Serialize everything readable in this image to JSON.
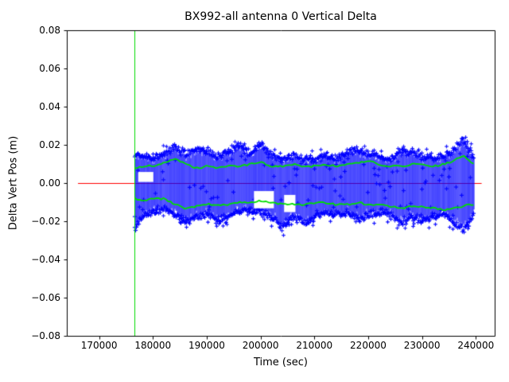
{
  "chart_data": {
    "type": "scatter",
    "title": "BX992-all antenna 0 Vertical Delta",
    "xlabel": "Time (sec)",
    "ylabel": "Delta Vert Pos (m)",
    "xlim": [
      164000,
      243500
    ],
    "ylim": [
      -0.08,
      0.08
    ],
    "xticks": [
      170000,
      180000,
      190000,
      200000,
      210000,
      220000,
      230000,
      240000
    ],
    "yticks": [
      -0.08,
      -0.06,
      -0.04,
      -0.02,
      0.0,
      0.02,
      0.04,
      0.06,
      0.08
    ],
    "grid": false,
    "legend": null,
    "marker": "+",
    "colors": {
      "scatter": "#0000ff",
      "smooth": "#00dd00",
      "zero_line": "#ff0000",
      "start_marker": "#00dd00",
      "axes": "#000000"
    },
    "data_x_start": 176500,
    "data_x_end": 239500,
    "vline_x": 176500,
    "zero_line": {
      "y": 0.0,
      "x0": 166000,
      "x1": 241000
    },
    "env_x": [
      176500,
      178000,
      180000,
      182000,
      184000,
      186000,
      188000,
      190000,
      192000,
      194000,
      196000,
      198000,
      200000,
      202000,
      204000,
      206000,
      208000,
      210000,
      212000,
      214000,
      216000,
      218000,
      220000,
      222000,
      224000,
      226000,
      228000,
      230000,
      232000,
      234000,
      236000,
      237500,
      239000,
      239500
    ],
    "series": [
      {
        "name": "vertical delta raw (blue +)",
        "type": "noise-band",
        "color": "#0000ff",
        "upper": [
          0.016,
          0.015,
          0.014,
          0.016,
          0.02,
          0.016,
          0.019,
          0.018,
          0.015,
          0.018,
          0.021,
          0.016,
          0.022,
          0.015,
          0.014,
          0.015,
          0.014,
          0.013,
          0.015,
          0.014,
          0.017,
          0.019,
          0.016,
          0.015,
          0.014,
          0.018,
          0.017,
          0.015,
          0.014,
          0.015,
          0.018,
          0.025,
          0.018,
          0.014
        ],
        "lower": [
          -0.026,
          -0.018,
          -0.015,
          -0.014,
          -0.017,
          -0.022,
          -0.018,
          -0.017,
          -0.02,
          -0.018,
          -0.016,
          -0.015,
          -0.016,
          -0.018,
          -0.024,
          -0.018,
          -0.022,
          -0.018,
          -0.016,
          -0.017,
          -0.016,
          -0.02,
          -0.017,
          -0.016,
          -0.017,
          -0.022,
          -0.018,
          -0.02,
          -0.018,
          -0.016,
          -0.022,
          -0.025,
          -0.02,
          -0.016
        ]
      },
      {
        "name": "smoothed upper envelope (green)",
        "type": "line",
        "color": "#00dd00",
        "y": [
          0.008,
          0.009,
          0.009,
          0.011,
          0.013,
          0.01,
          0.008,
          0.009,
          0.008,
          0.009,
          0.009,
          0.01,
          0.011,
          0.009,
          0.009,
          0.01,
          0.009,
          0.009,
          0.01,
          0.009,
          0.01,
          0.011,
          0.012,
          0.01,
          0.009,
          0.009,
          0.01,
          0.01,
          0.009,
          0.01,
          0.012,
          0.0145,
          0.011,
          0.01
        ]
      },
      {
        "name": "smoothed lower envelope (green)",
        "type": "line",
        "color": "#00dd00",
        "y": [
          -0.008,
          -0.009,
          -0.008,
          -0.008,
          -0.011,
          -0.013,
          -0.012,
          -0.011,
          -0.011,
          -0.011,
          -0.01,
          -0.01,
          -0.009,
          -0.01,
          -0.011,
          -0.011,
          -0.011,
          -0.01,
          -0.01,
          -0.011,
          -0.011,
          -0.01,
          -0.011,
          -0.011,
          -0.012,
          -0.013,
          -0.012,
          -0.012,
          -0.013,
          -0.014,
          -0.013,
          -0.012,
          -0.011,
          -0.011
        ]
      }
    ],
    "gaps": [
      {
        "x0": 177200,
        "x1": 180000,
        "y0": 0.0008,
        "y1": 0.006
      },
      {
        "x0": 198700,
        "x1": 202400,
        "y0": -0.013,
        "y1": -0.004
      },
      {
        "x0": 204300,
        "x1": 206400,
        "y0": -0.015,
        "y1": -0.006
      }
    ]
  }
}
